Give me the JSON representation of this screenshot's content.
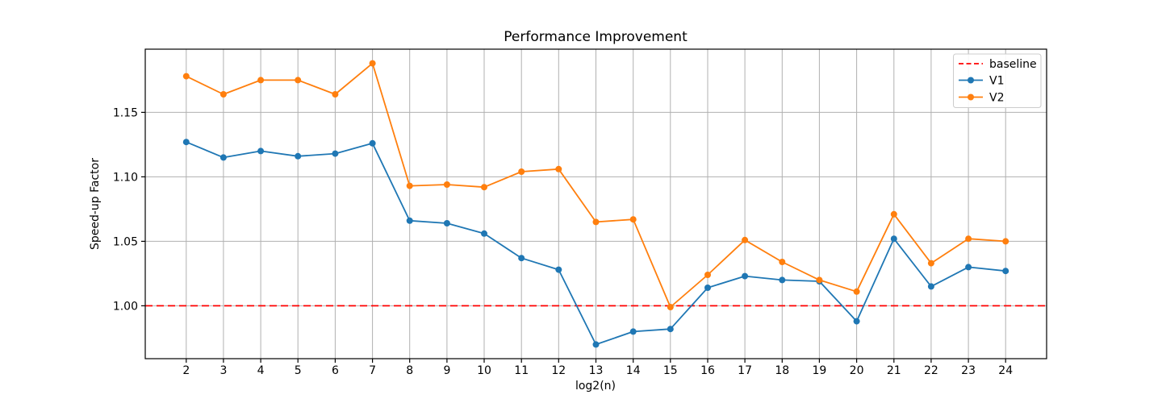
{
  "figure": {
    "background": "#ffffff"
  },
  "chart_data": {
    "type": "line",
    "title": "Performance Improvement",
    "xlabel": "log2(n)",
    "ylabel": "Speed-up Factor",
    "grid": true,
    "x": [
      2,
      3,
      4,
      5,
      6,
      7,
      8,
      9,
      10,
      11,
      12,
      13,
      14,
      15,
      16,
      17,
      18,
      19,
      20,
      21,
      22,
      23,
      24
    ],
    "x_tick_labels": [
      "2",
      "3",
      "4",
      "5",
      "6",
      "7",
      "8",
      "9",
      "10",
      "11",
      "12",
      "13",
      "14",
      "15",
      "16",
      "17",
      "18",
      "19",
      "20",
      "21",
      "22",
      "23",
      "24"
    ],
    "y_ticks": [
      1.0,
      1.05,
      1.1,
      1.15
    ],
    "y_tick_labels": [
      "1.00",
      "1.05",
      "1.10",
      "1.15"
    ],
    "xlim": [
      0.9,
      25.1
    ],
    "ylim": [
      0.959,
      1.199
    ],
    "baseline": {
      "label": "baseline",
      "value": 1.0,
      "color": "#ff0000",
      "style": "dashed"
    },
    "series": [
      {
        "name": "V1",
        "color": "#1f77b4",
        "marker": "circle",
        "values": [
          1.127,
          1.115,
          1.12,
          1.116,
          1.118,
          1.126,
          1.066,
          1.064,
          1.056,
          1.037,
          1.028,
          0.97,
          0.98,
          0.982,
          1.014,
          1.023,
          1.02,
          1.019,
          0.988,
          1.052,
          1.015,
          1.03,
          1.027
        ]
      },
      {
        "name": "V2",
        "color": "#ff7f0e",
        "marker": "circle",
        "values": [
          1.178,
          1.164,
          1.175,
          1.175,
          1.164,
          1.188,
          1.093,
          1.094,
          1.092,
          1.104,
          1.106,
          1.065,
          1.067,
          0.999,
          1.024,
          1.051,
          1.034,
          1.02,
          1.011,
          1.071,
          1.033,
          1.052,
          1.05
        ]
      }
    ],
    "legend": {
      "position": "upper right",
      "entries": [
        {
          "label": "baseline",
          "color": "#ff0000",
          "style": "dashed"
        },
        {
          "label": "V1",
          "color": "#1f77b4",
          "style": "solid-marker"
        },
        {
          "label": "V2",
          "color": "#ff7f0e",
          "style": "solid-marker"
        }
      ]
    },
    "colors": {
      "grid": "#b0b0b0",
      "frame": "#000000",
      "text": "#000000"
    }
  }
}
